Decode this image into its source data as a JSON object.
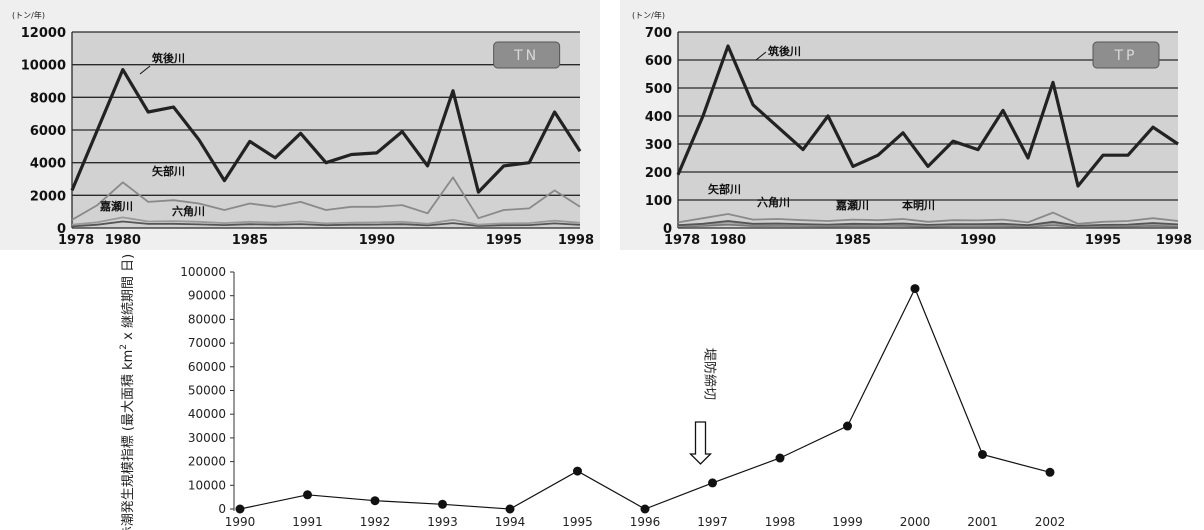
{
  "chart_data": [
    {
      "type": "line",
      "unit_label": "(トン/年)",
      "badge": "TN",
      "ylim": [
        0,
        12000
      ],
      "yticks": [
        0,
        2000,
        4000,
        6000,
        8000,
        10000,
        12000
      ],
      "xlim": [
        1978,
        1998
      ],
      "xtick_labels": [
        "1978",
        "1980",
        "1985",
        "1990",
        "1995",
        "1998"
      ],
      "grid": true,
      "x": [
        1978,
        1979,
        1980,
        1981,
        1982,
        1983,
        1984,
        1985,
        1986,
        1987,
        1988,
        1989,
        1990,
        1991,
        1992,
        1993,
        1994,
        1995,
        1996,
        1997,
        1998
      ],
      "series": [
        {
          "name": "筑後川",
          "color": "#222222",
          "values": [
            2300,
            6000,
            9700,
            7100,
            7400,
            5400,
            2900,
            5300,
            4300,
            5800,
            4000,
            4500,
            4600,
            5900,
            3800,
            8400,
            2200,
            3800,
            4000,
            7100,
            4700
          ]
        },
        {
          "name": "矢部川",
          "color": "#8a8a8a",
          "values": [
            500,
            1400,
            2800,
            1600,
            1700,
            1500,
            1100,
            1500,
            1300,
            1600,
            1100,
            1300,
            1300,
            1400,
            900,
            3100,
            600,
            1100,
            1200,
            2300,
            1300
          ]
        },
        {
          "name": "嘉瀬川",
          "color": "#9a9a9a",
          "values": [
            200,
            350,
            650,
            400,
            420,
            380,
            300,
            380,
            330,
            400,
            280,
            330,
            340,
            380,
            260,
            500,
            200,
            280,
            300,
            450,
            320
          ]
        },
        {
          "name": "六角川",
          "color": "#555555",
          "values": [
            100,
            200,
            400,
            250,
            260,
            220,
            180,
            230,
            200,
            240,
            170,
            200,
            210,
            230,
            160,
            300,
            120,
            170,
            180,
            280,
            190
          ]
        }
      ]
    },
    {
      "type": "line",
      "unit_label": "(トン/年)",
      "badge": "TP",
      "ylim": [
        0,
        700
      ],
      "yticks": [
        0,
        100,
        200,
        300,
        400,
        500,
        600,
        700
      ],
      "xlim": [
        1978,
        1998
      ],
      "xtick_labels": [
        "1978",
        "1980",
        "1985",
        "1990",
        "1995",
        "1998"
      ],
      "grid": true,
      "x": [
        1978,
        1979,
        1980,
        1981,
        1982,
        1983,
        1984,
        1985,
        1986,
        1987,
        1988,
        1989,
        1990,
        1991,
        1992,
        1993,
        1994,
        1995,
        1996,
        1997,
        1998
      ],
      "series": [
        {
          "name": "筑後川",
          "color": "#222222",
          "values": [
            190,
            400,
            650,
            440,
            360,
            280,
            400,
            220,
            260,
            340,
            220,
            310,
            280,
            420,
            250,
            520,
            150,
            260,
            260,
            360,
            300
          ]
        },
        {
          "name": "矢部川",
          "color": "#8a8a8a",
          "values": [
            20,
            35,
            50,
            30,
            32,
            28,
            25,
            30,
            28,
            32,
            22,
            28,
            27,
            30,
            20,
            55,
            15,
            22,
            25,
            35,
            25
          ]
        },
        {
          "name": "六角川",
          "color": "#555555",
          "values": [
            10,
            15,
            25,
            15,
            16,
            14,
            12,
            15,
            14,
            16,
            11,
            14,
            14,
            15,
            10,
            22,
            8,
            11,
            12,
            18,
            13
          ]
        },
        {
          "name": "嘉瀬川",
          "color": "#9a9a9a",
          "values": [
            8,
            12,
            20,
            12,
            13,
            11,
            10,
            12,
            11,
            13,
            9,
            11,
            11,
            12,
            8,
            18,
            6,
            9,
            10,
            14,
            10
          ]
        },
        {
          "name": "本明川",
          "color": "#777777",
          "values": [
            5,
            8,
            12,
            7,
            8,
            7,
            6,
            7,
            7,
            8,
            5,
            7,
            7,
            7,
            5,
            10,
            4,
            5,
            6,
            8,
            6
          ]
        }
      ]
    },
    {
      "type": "line",
      "ylabel_parts": [
        "赤潮発生規模指標 (最大面積 km",
        "2",
        " x 継続期間 日)"
      ],
      "ylim": [
        0,
        100000
      ],
      "yticks": [
        0,
        10000,
        20000,
        30000,
        40000,
        50000,
        60000,
        70000,
        80000,
        90000,
        100000
      ],
      "categories": [
        "1990",
        "1991",
        "1992",
        "1993",
        "1994",
        "1995",
        "1996",
        "1997",
        "1998",
        "1999",
        "2000",
        "2001",
        "2002"
      ],
      "values": [
        0,
        6000,
        3500,
        2000,
        0,
        16000,
        0,
        11000,
        21500,
        35000,
        93000,
        23000,
        15500
      ],
      "grid": false,
      "annotation": {
        "text": "堤防締切",
        "x": "1997"
      }
    }
  ]
}
